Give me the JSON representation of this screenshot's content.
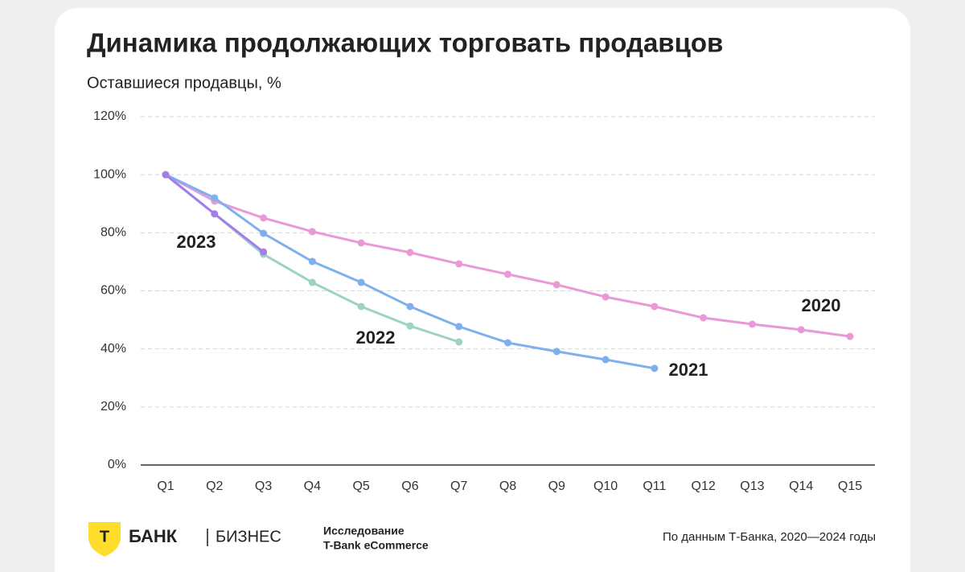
{
  "chart_data": {
    "type": "line",
    "title": "Динамика продолжающих торговать продавцов",
    "subtitle": "Оставшиеся продавцы, %",
    "categories": [
      "Q1",
      "Q2",
      "Q3",
      "Q4",
      "Q5",
      "Q6",
      "Q7",
      "Q8",
      "Q9",
      "Q10",
      "Q11",
      "Q12",
      "Q13",
      "Q14",
      "Q15"
    ],
    "series": [
      {
        "name": "2020",
        "color": "#e99ad6",
        "values": [
          100,
          90.9,
          85.1,
          80.4,
          76.5,
          73.2,
          69.3,
          65.7,
          62.1,
          57.9,
          54.6,
          50.7,
          48.5,
          46.6,
          44.3
        ]
      },
      {
        "name": "2021",
        "color": "#7fb0ee",
        "values": [
          100,
          92,
          79.8,
          70.1,
          62.9,
          54.6,
          47.7,
          42.1,
          39.1,
          36.3,
          33.3,
          null,
          null,
          null,
          null
        ]
      },
      {
        "name": "2022",
        "color": "#9dd3c2",
        "values": [
          100,
          86.5,
          72.6,
          62.9,
          54.6,
          47.9,
          42.4,
          null,
          null,
          null,
          null,
          null,
          null,
          null,
          null
        ]
      },
      {
        "name": "2023",
        "color": "#a37de8",
        "values": [
          100,
          86.5,
          73.4,
          null,
          null,
          null,
          null,
          null,
          null,
          null,
          null,
          null,
          null,
          null,
          null
        ]
      }
    ],
    "ylim": [
      0,
      120
    ],
    "yticks": [
      {
        "value": 0,
        "label": "0%"
      },
      {
        "value": 20,
        "label": "20%"
      },
      {
        "value": 40,
        "label": "40%"
      },
      {
        "value": 60,
        "label": "60%"
      },
      {
        "value": 80,
        "label": "80%"
      },
      {
        "value": 100,
        "label": "100%"
      },
      {
        "value": 120,
        "label": "120%"
      }
    ],
    "grid": true
  },
  "footer": {
    "logo_letter": "Т",
    "brand": "БАНК",
    "brand_suffix": "БИЗНЕС",
    "study_line1": "Исследование",
    "study_line2": "T-Bank eCommerce",
    "source": "По данным Т-Банка, 2020—2024 годы"
  }
}
